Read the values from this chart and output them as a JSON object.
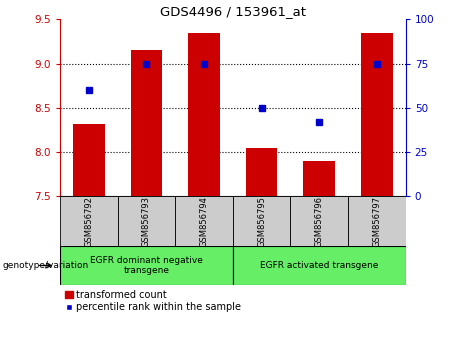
{
  "title": "GDS4496 / 153961_at",
  "samples": [
    "GSM856792",
    "GSM856793",
    "GSM856794",
    "GSM856795",
    "GSM856796",
    "GSM856797"
  ],
  "red_values": [
    8.32,
    9.15,
    9.35,
    8.05,
    7.9,
    9.35
  ],
  "blue_values": [
    60,
    75,
    75,
    50,
    42,
    75
  ],
  "ylim_left": [
    7.5,
    9.5
  ],
  "ylim_right": [
    0,
    100
  ],
  "yticks_left": [
    7.5,
    8.0,
    8.5,
    9.0,
    9.5
  ],
  "yticks_right": [
    0,
    25,
    50,
    75,
    100
  ],
  "bar_bottom": 7.5,
  "bar_color": "#cc0000",
  "dot_color": "#0000cc",
  "plot_bg": "#ffffff",
  "group1_label": "EGFR dominant negative\ntransgene",
  "group2_label": "EGFR activated transgene",
  "group1_indices": [
    0,
    1,
    2
  ],
  "group2_indices": [
    3,
    4,
    5
  ],
  "group_color": "#66ee66",
  "left_axis_color": "#cc0000",
  "right_axis_color": "#0000cc",
  "legend_red_label": "transformed count",
  "legend_blue_label": "percentile rank within the sample",
  "genotype_label": "genotype/variation",
  "tick_bg_color": "#cccccc",
  "grid_yticks": [
    8.0,
    8.5,
    9.0
  ],
  "bar_width": 0.55
}
